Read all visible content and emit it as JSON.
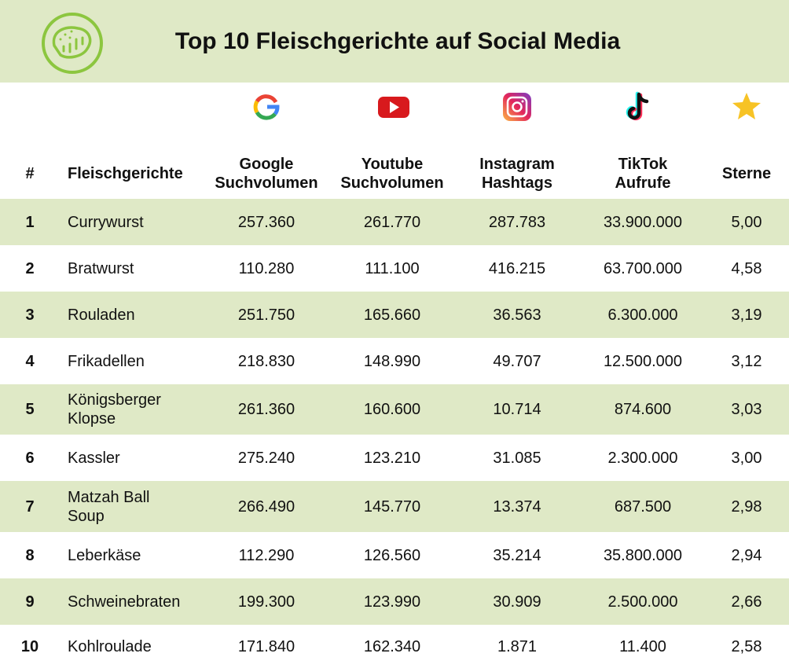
{
  "header": {
    "title": "Top 10 Fleischgerichte auf Social Media"
  },
  "table": {
    "headers": [
      [
        "#"
      ],
      [
        "Fleischgerichte"
      ],
      [
        "Google",
        "Suchvolumen"
      ],
      [
        "Youtube",
        "Suchvolumen"
      ],
      [
        "Instagram",
        "Hashtags"
      ],
      [
        "TikTok",
        "Aufrufe"
      ],
      [
        "Sterne"
      ]
    ],
    "rows": [
      [
        "1",
        "Currywurst",
        "257.360",
        "261.770",
        "287.783",
        "33.900.000",
        "5,00"
      ],
      [
        "2",
        "Bratwurst",
        "110.280",
        "111.100",
        "416.215",
        "63.700.000",
        "4,58"
      ],
      [
        "3",
        "Rouladen",
        "251.750",
        "165.660",
        "36.563",
        "6.300.000",
        "3,19"
      ],
      [
        "4",
        "Frikadellen",
        "218.830",
        "148.990",
        "49.707",
        "12.500.000",
        "3,12"
      ],
      [
        "5",
        "Königsberger Klopse",
        "261.360",
        "160.600",
        "10.714",
        "874.600",
        "3,03"
      ],
      [
        "6",
        "Kassler",
        "275.240",
        "123.210",
        "31.085",
        "2.300.000",
        "3,00"
      ],
      [
        "7",
        "Matzah Ball Soup",
        "266.490",
        "145.770",
        "13.374",
        "687.500",
        "2,98"
      ],
      [
        "8",
        "Leberkäse",
        "112.290",
        "126.560",
        "35.214",
        "35.800.000",
        "2,94"
      ],
      [
        "9",
        "Schweinebraten",
        "199.300",
        "123.990",
        "30.909",
        "2.500.000",
        "2,66"
      ],
      [
        "10",
        "Kohlroulade",
        "171.840",
        "162.340",
        "1.871",
        "11.400",
        "2,58"
      ]
    ]
  }
}
